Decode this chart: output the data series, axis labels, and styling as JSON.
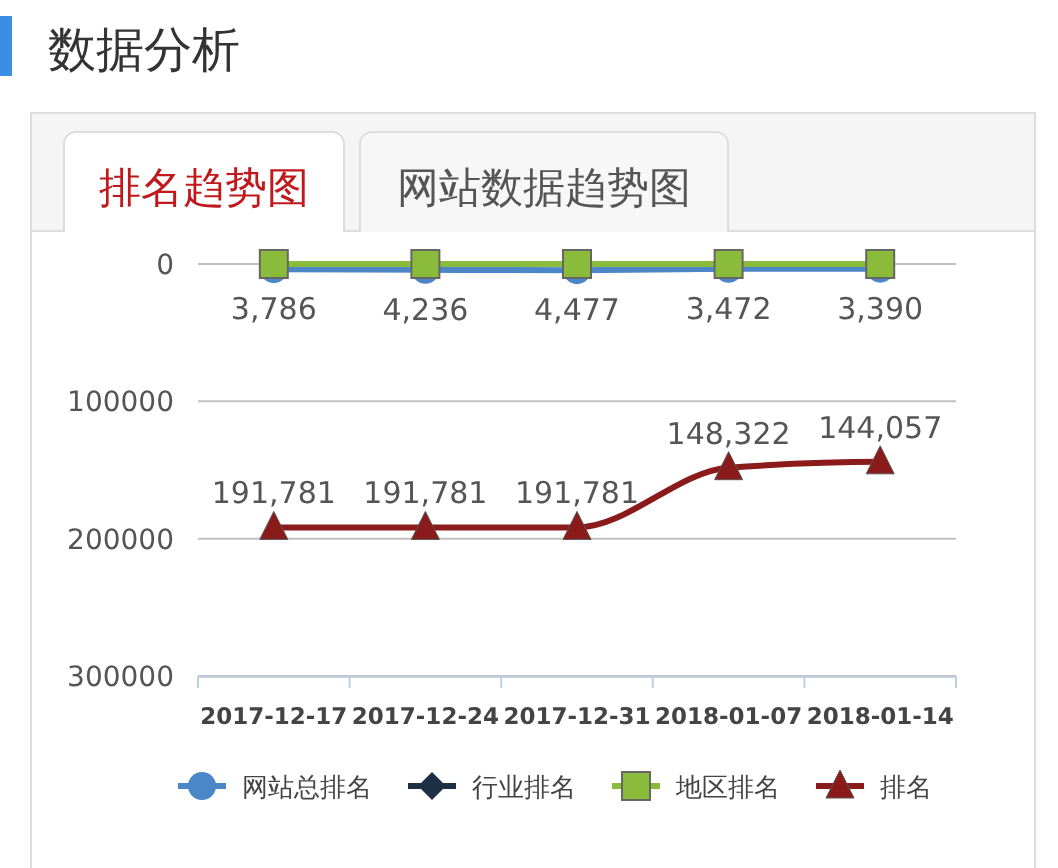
{
  "chart_data": {
    "type": "line",
    "title": "数据分析",
    "subtitle": "排名趋势图",
    "annotations": [
      "网站数据趋势图"
    ],
    "categories": [
      "2017-12-17",
      "2017-12-24",
      "2017-12-31",
      "2018-01-07",
      "2018-01-14"
    ],
    "series": [
      {
        "name": "网站总排名",
        "color": "#4a86c8",
        "marker": "circle",
        "values": [
          3786,
          4236,
          4477,
          3472,
          3390
        ],
        "value_labels": [
          "3,786",
          "4,236",
          "4,477",
          "3,472",
          "3,390"
        ]
      },
      {
        "name": "行业排名",
        "color": "#1d2f45",
        "marker": "diamond",
        "values": [
          null,
          null,
          null,
          null,
          null
        ]
      },
      {
        "name": "地区排名",
        "color": "#8bbb3a",
        "marker": "square",
        "values": [
          0,
          0,
          0,
          0,
          0
        ]
      },
      {
        "name": "排名",
        "color": "#8b1a1a",
        "marker": "triangle",
        "values": [
          191781,
          191781,
          191781,
          148322,
          144057
        ],
        "value_labels": [
          "191,781",
          "191,781",
          "191,781",
          "148,322",
          "144,057"
        ]
      }
    ],
    "ylim": [
      300000,
      0
    ],
    "yticks": [
      0,
      100000,
      200000,
      300000
    ],
    "grid": "y",
    "legend": "bottom"
  }
}
